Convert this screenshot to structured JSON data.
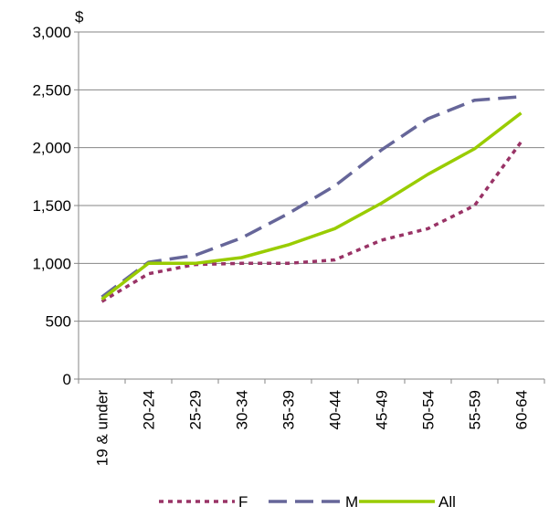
{
  "chart_data": {
    "type": "line",
    "ylabel": "$",
    "xlabel": "",
    "ylim": [
      0,
      3000
    ],
    "yticks": [
      0,
      500,
      1000,
      1500,
      2000,
      2500,
      3000
    ],
    "ytick_labels": [
      "0",
      "500",
      "1,000",
      "1,500",
      "2,000",
      "2,500",
      "3,000"
    ],
    "categories": [
      "19 & under",
      "20-24",
      "25-29",
      "30-34",
      "35-39",
      "40-44",
      "45-49",
      "50-54",
      "55-59",
      "60-64"
    ],
    "grid": "horizontal",
    "legend_position": "bottom",
    "series": [
      {
        "name": "F",
        "color": "#993366",
        "style": "dotted",
        "values": [
          670,
          910,
          990,
          1000,
          1000,
          1030,
          1200,
          1300,
          1500,
          2050
        ]
      },
      {
        "name": "M",
        "color": "#666699",
        "style": "dashed",
        "values": [
          710,
          1010,
          1070,
          1220,
          1430,
          1670,
          1980,
          2250,
          2410,
          2440
        ]
      },
      {
        "name": "All",
        "color": "#99cc00",
        "style": "solid",
        "values": [
          690,
          1000,
          1000,
          1050,
          1160,
          1300,
          1520,
          1770,
          1990,
          2300
        ]
      }
    ]
  }
}
